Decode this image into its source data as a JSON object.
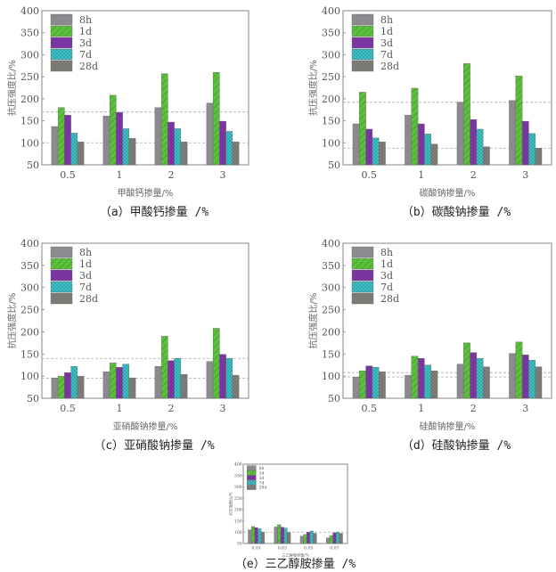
{
  "chart_data": [
    {
      "type": "bar",
      "caption": "（a）甲酸钙掺量 /%",
      "xlabel": "甲酸钙掺量/%",
      "ylabel": "抗压强度比/%",
      "ylim": [
        50,
        400
      ],
      "yticks": [
        50,
        100,
        150,
        200,
        250,
        300,
        350,
        400
      ],
      "categories": [
        "0.5",
        "1",
        "2",
        "3"
      ],
      "ref_lines": [
        170,
        100
      ],
      "series": [
        {
          "name": "8h",
          "values": [
            137,
            161,
            180,
            190
          ]
        },
        {
          "name": "1d",
          "values": [
            180,
            208,
            257,
            260
          ]
        },
        {
          "name": "3d",
          "values": [
            163,
            169,
            147,
            149
          ]
        },
        {
          "name": "7d",
          "values": [
            122,
            132,
            132,
            126
          ]
        },
        {
          "name": "28d",
          "values": [
            102,
            110,
            102,
            102
          ]
        }
      ]
    },
    {
      "type": "bar",
      "caption": "（b）碳酸钠掺量 /%",
      "xlabel": "碳酸钠掺量/%",
      "ylabel": "抗压强度比/%",
      "ylim": [
        50,
        400
      ],
      "yticks": [
        50,
        100,
        150,
        200,
        250,
        300,
        350,
        400
      ],
      "categories": [
        "0.5",
        "1",
        "2",
        "3"
      ],
      "ref_lines": [
        192,
        88
      ],
      "series": [
        {
          "name": "8h",
          "values": [
            143,
            163,
            192,
            196
          ]
        },
        {
          "name": "1d",
          "values": [
            215,
            224,
            280,
            252
          ]
        },
        {
          "name": "3d",
          "values": [
            131,
            143,
            153,
            149
          ]
        },
        {
          "name": "7d",
          "values": [
            111,
            120,
            131,
            121
          ]
        },
        {
          "name": "28d",
          "values": [
            102,
            97,
            91,
            88
          ]
        }
      ]
    },
    {
      "type": "bar",
      "caption": "（c）亚硝酸钠掺量 /%",
      "xlabel": "亚硝酸钠掺量/%",
      "ylabel": "抗压强度比/%",
      "ylim": [
        50,
        400
      ],
      "yticks": [
        50,
        100,
        150,
        200,
        250,
        300,
        350,
        400
      ],
      "categories": [
        "0.5",
        "1",
        "2",
        "3"
      ],
      "ref_lines": [
        140,
        95
      ],
      "series": [
        {
          "name": "8h",
          "values": [
            96,
            110,
            122,
            133
          ]
        },
        {
          "name": "1d",
          "values": [
            100,
            130,
            190,
            208
          ]
        },
        {
          "name": "3d",
          "values": [
            108,
            120,
            135,
            149
          ]
        },
        {
          "name": "7d",
          "values": [
            122,
            127,
            140,
            140
          ]
        },
        {
          "name": "28d",
          "values": [
            100,
            96,
            104,
            102
          ]
        }
      ]
    },
    {
      "type": "bar",
      "caption": "（d）硅酸钠掺量 /%",
      "xlabel": "硅酸钠掺量/%",
      "ylabel": "抗压强度比/%",
      "ylim": [
        50,
        400
      ],
      "yticks": [
        50,
        100,
        150,
        200,
        250,
        300,
        350,
        400
      ],
      "categories": [
        "0.5",
        "1",
        "2",
        "3"
      ],
      "ref_lines": [
        108,
        98
      ],
      "series": [
        {
          "name": "8h",
          "values": [
            98,
            102,
            127,
            151
          ]
        },
        {
          "name": "1d",
          "values": [
            112,
            145,
            175,
            177
          ]
        },
        {
          "name": "3d",
          "values": [
            123,
            140,
            153,
            148
          ]
        },
        {
          "name": "7d",
          "values": [
            120,
            125,
            140,
            136
          ]
        },
        {
          "name": "28d",
          "values": [
            110,
            112,
            121,
            121
          ]
        }
      ]
    },
    {
      "type": "bar",
      "caption": "（e）三乙醇胺掺量 /%",
      "xlabel": "三乙醇胺掺量/%",
      "ylabel": "抗压强度比/%",
      "ylim": [
        50,
        400
      ],
      "yticks": [
        50,
        100,
        150,
        200,
        250,
        300,
        350,
        400
      ],
      "categories": [
        "0.01",
        "0.03",
        "0.05",
        "0.07"
      ],
      "ref_lines": [
        100
      ],
      "series": [
        {
          "name": "8h",
          "values": [
            110,
            123,
            82,
            75
          ]
        },
        {
          "name": "1d",
          "values": [
            125,
            133,
            90,
            85
          ]
        },
        {
          "name": "3d",
          "values": [
            120,
            122,
            100,
            97
          ]
        },
        {
          "name": "7d",
          "values": [
            115,
            118,
            105,
            100
          ]
        },
        {
          "name": "28d",
          "values": [
            100,
            98,
            95,
            95
          ]
        }
      ]
    }
  ],
  "colors": {
    "8h": "#8a8a90",
    "1d": "#5cc03c",
    "3d": "#7a35a0",
    "7d": "#40c8cc",
    "28d": "#7c7a74"
  }
}
